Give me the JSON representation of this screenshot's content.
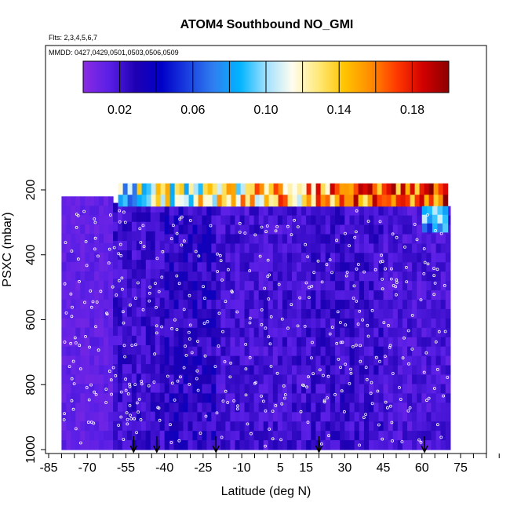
{
  "chart_data": {
    "type": "heatmap",
    "title": "ATOM4 Southbound NO_GMI",
    "annotations": [
      "Flts: 2,3,4,5,6,7",
      "MMDD: 0427,0429,0501,0503,0506,0509"
    ],
    "xlabel": "Latitude (deg N)",
    "ylabel": "PSXC (mbar)",
    "xlim": [
      -90,
      90
    ],
    "ylim": [
      1000,
      0
    ],
    "x_ticks": [
      -85,
      -70,
      -55,
      -40,
      -25,
      -10,
      5,
      15,
      30,
      45,
      60,
      75
    ],
    "x_tick_labels": [
      "-85",
      "-70",
      "-55",
      "-40",
      "-25",
      "-10",
      "5",
      "15",
      "30",
      "45",
      "60",
      "75"
    ],
    "y_ticks": [
      200,
      400,
      600,
      800,
      1000
    ],
    "y_tick_labels": [
      "200",
      "400",
      "600",
      "800",
      "1000"
    ],
    "colorbar": {
      "min": 0.0,
      "max": 0.2,
      "tick_values": [
        0.02,
        0.06,
        0.1,
        0.14,
        0.18
      ],
      "tick_labels": [
        "0.02",
        "0.06",
        "0.10",
        "0.14",
        "0.18"
      ],
      "colors": [
        "#8a2be2",
        "#5a1fe6",
        "#1f00b3",
        "#0000c8",
        "#1a3fe0",
        "#2f7ff0",
        "#00b4ff",
        "#9fe0ff",
        "#fffdf0",
        "#ffe97a",
        "#ffc400",
        "#ff8c00",
        "#ff3a00",
        "#d30000",
        "#8b0000"
      ]
    },
    "flight_markers_lat": [
      -52,
      -43,
      -20,
      20,
      61
    ],
    "regions": [
      {
        "lat": [
          -80,
          -60
        ],
        "pres": [
          220,
          1000
        ],
        "value": 0.012
      },
      {
        "lat": [
          -60,
          -40
        ],
        "pres": [
          240,
          1000
        ],
        "value": 0.022
      },
      {
        "lat": [
          -40,
          -20
        ],
        "pres": [
          250,
          1000
        ],
        "value": 0.026
      },
      {
        "lat": [
          -20,
          15
        ],
        "pres": [
          250,
          1000
        ],
        "value": 0.02
      },
      {
        "lat": [
          15,
          45
        ],
        "pres": [
          250,
          1000
        ],
        "value": 0.022
      },
      {
        "lat": [
          45,
          71
        ],
        "pres": [
          250,
          1000
        ],
        "value": 0.018
      },
      {
        "lat": [
          -58,
          70
        ],
        "pres": [
          180,
          250
        ],
        "value": 0.1
      },
      {
        "lat": [
          60,
          70
        ],
        "pres": [
          250,
          330
        ],
        "value": 0.08
      }
    ]
  }
}
